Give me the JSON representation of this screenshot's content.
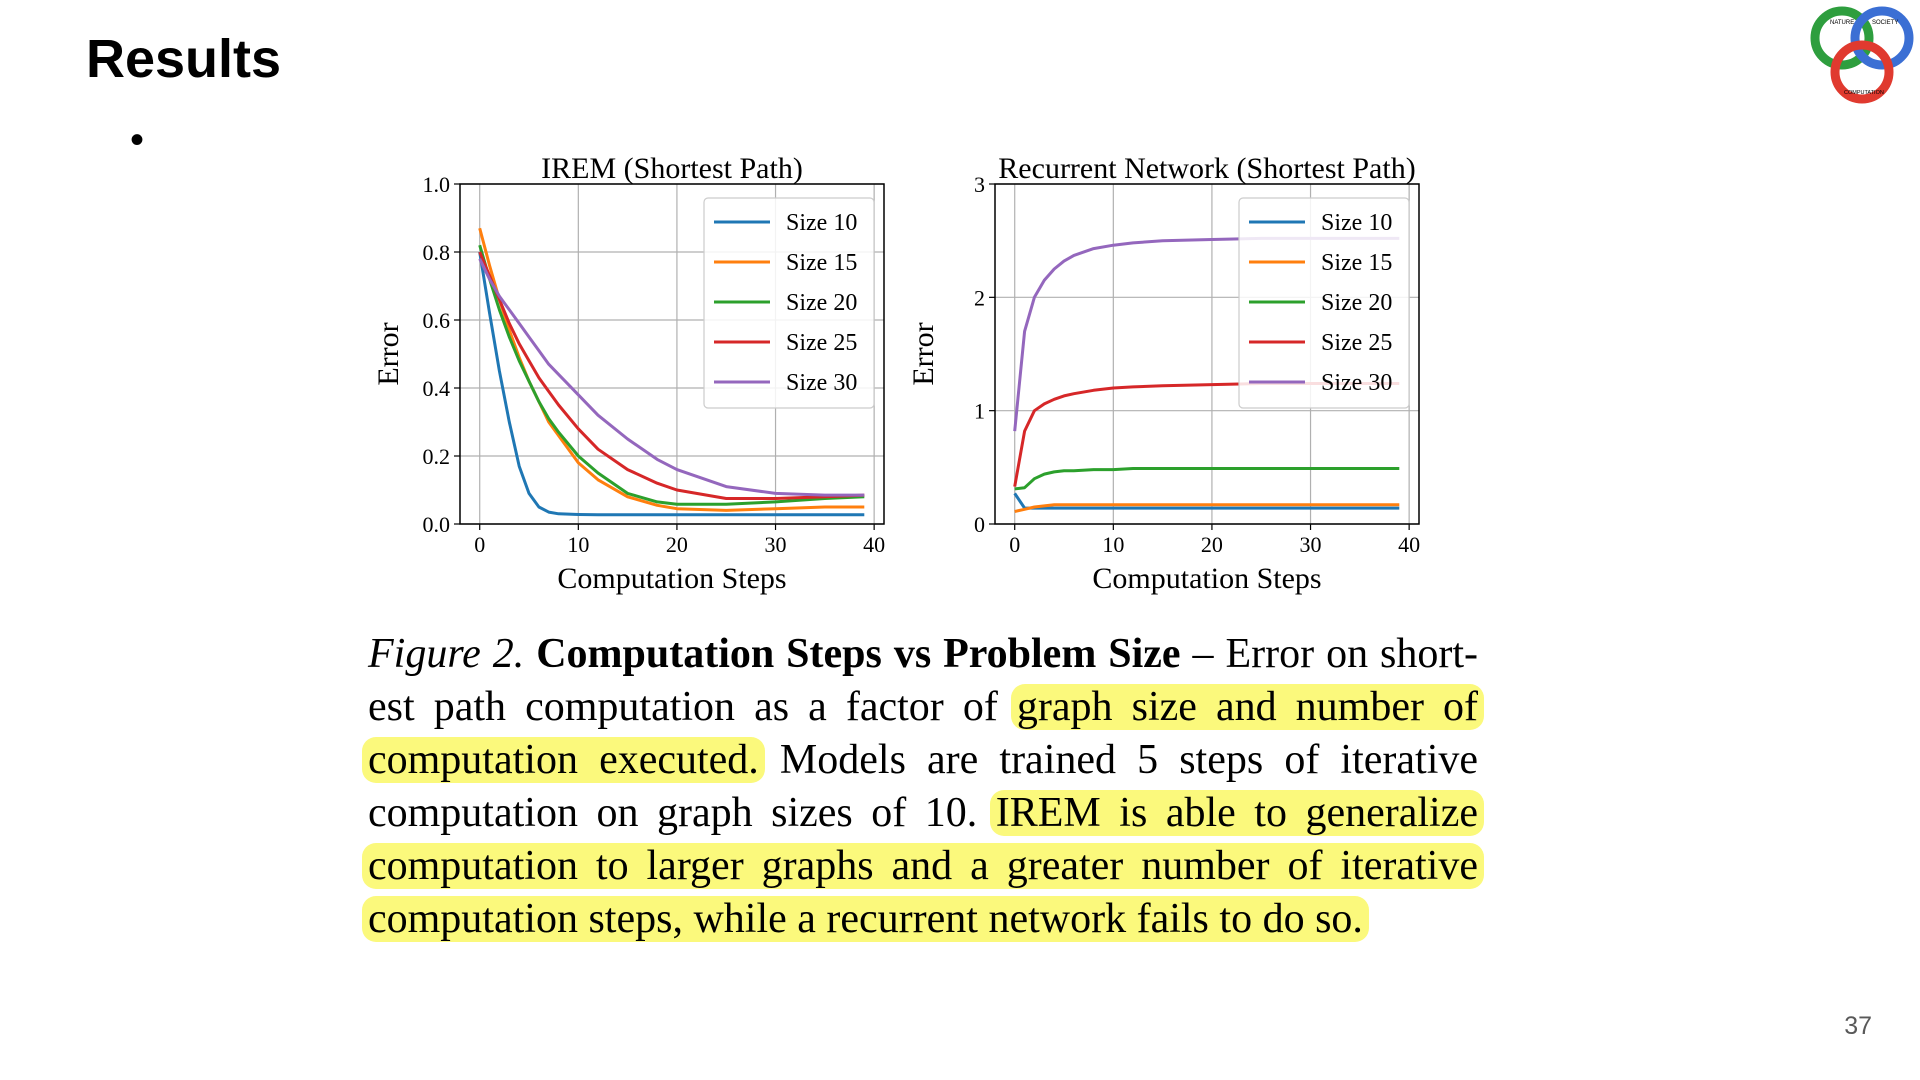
{
  "slide": {
    "title": "Results",
    "bullet": "•",
    "page_number": "37"
  },
  "logo": {
    "icon": "nature-society-computation-logo",
    "text_top_left": "NATURE",
    "text_top_right": "SOCIETY",
    "text_bottom": "COMPUTATION",
    "colors": [
      "#2e9e3e",
      "#3b6fd4",
      "#e03a2f"
    ]
  },
  "chart_data": [
    {
      "type": "line",
      "title": "IREM (Shortest Path)",
      "xlabel": "Computation Steps",
      "ylabel": "Error",
      "xlim": [
        -2,
        41
      ],
      "ylim": [
        0,
        1.0
      ],
      "xticks": [
        "0",
        "10",
        "20",
        "30",
        "40"
      ],
      "yticks": [
        "0.0",
        "0.2",
        "0.4",
        "0.6",
        "0.8",
        "1.0"
      ],
      "grid": true,
      "legend_position": "top-right",
      "x": [
        0,
        1,
        2,
        3,
        4,
        5,
        6,
        7,
        8,
        10,
        12,
        15,
        18,
        20,
        25,
        30,
        35,
        39
      ],
      "series": [
        {
          "name": "Size 10",
          "color": "#1f77b4",
          "values": [
            0.8,
            0.62,
            0.45,
            0.3,
            0.17,
            0.09,
            0.05,
            0.035,
            0.03,
            0.028,
            0.027,
            0.027,
            0.027,
            0.027,
            0.027,
            0.027,
            0.027,
            0.027
          ]
        },
        {
          "name": "Size 15",
          "color": "#ff7f0e",
          "values": [
            0.87,
            0.76,
            0.66,
            0.57,
            0.49,
            0.42,
            0.36,
            0.3,
            0.26,
            0.18,
            0.13,
            0.08,
            0.055,
            0.045,
            0.04,
            0.045,
            0.05,
            0.05
          ]
        },
        {
          "name": "Size 20",
          "color": "#2ca02c",
          "values": [
            0.82,
            0.72,
            0.63,
            0.55,
            0.48,
            0.42,
            0.36,
            0.31,
            0.27,
            0.2,
            0.15,
            0.09,
            0.065,
            0.058,
            0.058,
            0.065,
            0.075,
            0.08
          ]
        },
        {
          "name": "Size 25",
          "color": "#d62728",
          "values": [
            0.8,
            0.73,
            0.66,
            0.59,
            0.53,
            0.48,
            0.43,
            0.39,
            0.35,
            0.28,
            0.22,
            0.16,
            0.12,
            0.1,
            0.075,
            0.075,
            0.08,
            0.085
          ]
        },
        {
          "name": "Size 30",
          "color": "#9467bd",
          "values": [
            0.78,
            0.72,
            0.67,
            0.63,
            0.59,
            0.55,
            0.51,
            0.47,
            0.44,
            0.38,
            0.32,
            0.25,
            0.19,
            0.16,
            0.11,
            0.09,
            0.085,
            0.085
          ]
        }
      ]
    },
    {
      "type": "line",
      "title": "Recurrent Network (Shortest Path)",
      "xlabel": "Computation Steps",
      "ylabel": "Error",
      "xlim": [
        -2,
        41
      ],
      "ylim": [
        0,
        3
      ],
      "xticks": [
        "0",
        "10",
        "20",
        "30",
        "40"
      ],
      "yticks": [
        "0",
        "1",
        "2",
        "3"
      ],
      "grid": true,
      "legend_position": "top-right",
      "x": [
        0,
        1,
        2,
        3,
        4,
        5,
        6,
        8,
        10,
        12,
        15,
        20,
        25,
        30,
        35,
        39
      ],
      "series": [
        {
          "name": "Size 10",
          "color": "#1f77b4",
          "values": [
            0.27,
            0.14,
            0.14,
            0.14,
            0.14,
            0.14,
            0.14,
            0.14,
            0.14,
            0.14,
            0.14,
            0.14,
            0.14,
            0.14,
            0.14,
            0.14
          ]
        },
        {
          "name": "Size 15",
          "color": "#ff7f0e",
          "values": [
            0.11,
            0.13,
            0.15,
            0.16,
            0.17,
            0.17,
            0.17,
            0.17,
            0.17,
            0.17,
            0.17,
            0.17,
            0.17,
            0.17,
            0.17,
            0.17
          ]
        },
        {
          "name": "Size 20",
          "color": "#2ca02c",
          "values": [
            0.31,
            0.32,
            0.4,
            0.44,
            0.46,
            0.47,
            0.47,
            0.48,
            0.48,
            0.49,
            0.49,
            0.49,
            0.49,
            0.49,
            0.49,
            0.49
          ]
        },
        {
          "name": "Size 25",
          "color": "#d62728",
          "values": [
            0.33,
            0.82,
            1.0,
            1.06,
            1.1,
            1.13,
            1.15,
            1.18,
            1.2,
            1.21,
            1.22,
            1.23,
            1.24,
            1.24,
            1.24,
            1.24
          ]
        },
        {
          "name": "Size 30",
          "color": "#9467bd",
          "values": [
            0.82,
            1.7,
            2.0,
            2.15,
            2.25,
            2.32,
            2.37,
            2.43,
            2.46,
            2.48,
            2.5,
            2.51,
            2.52,
            2.52,
            2.52,
            2.52
          ]
        }
      ]
    }
  ],
  "caption": {
    "lines": [
      [
        {
          "t": "Figure 2.",
          "s": "italic"
        },
        {
          "t": " "
        },
        {
          "t": "Computation Steps vs Problem Size",
          "s": "bold"
        },
        {
          "t": " – Error on short-"
        }
      ],
      [
        {
          "t": "est path computation as a factor of "
        },
        {
          "t": "graph size and number of",
          "s": "hl"
        }
      ],
      [
        {
          "t": "computation executed.",
          "s": "hl"
        },
        {
          "t": "  Models are trained 5 steps of iterative"
        }
      ],
      [
        {
          "t": "computation on graph sizes of 10.  "
        },
        {
          "t": "IREM is able to generalize",
          "s": "hl"
        }
      ],
      [
        {
          "t": "computation to larger graphs and a greater number of iterative",
          "s": "hl"
        }
      ],
      [
        {
          "t": "computation steps, while a recurrent network fails to do so.",
          "s": "hl"
        }
      ]
    ]
  }
}
